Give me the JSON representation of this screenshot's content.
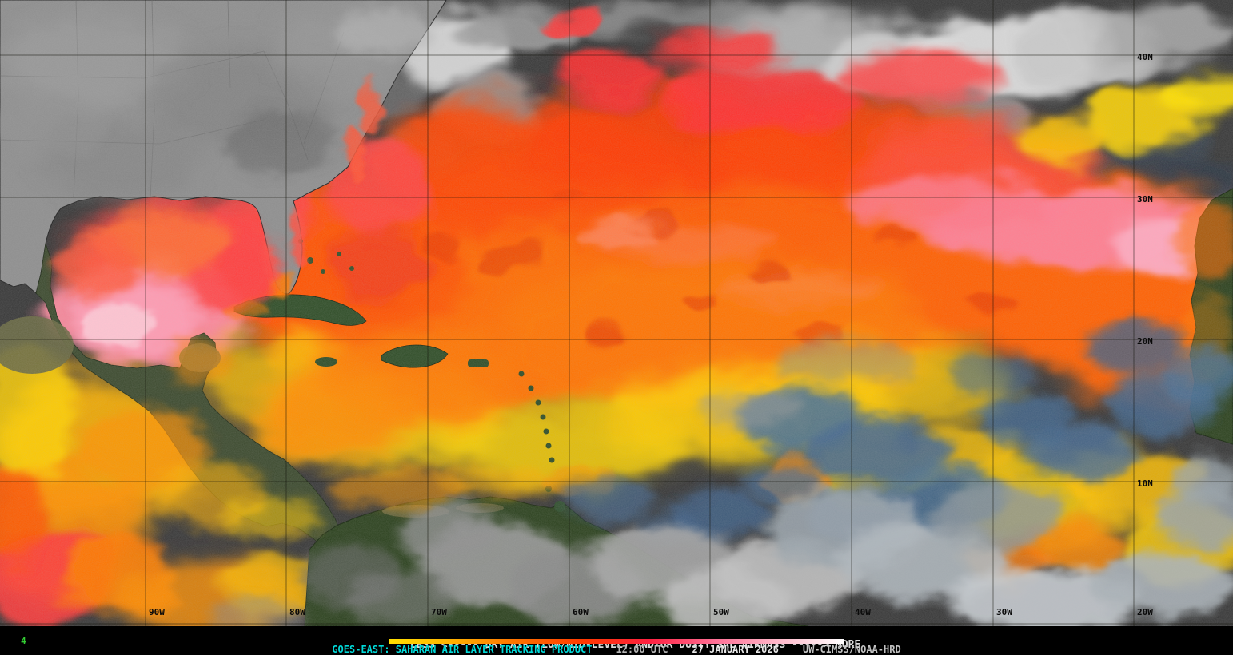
{
  "map": {
    "frame_number": "4",
    "lat_labels": [
      "40N",
      "30N",
      "20N",
      "10N"
    ],
    "lon_labels": [
      "90W",
      "80W",
      "70W",
      "60W",
      "50W",
      "40W",
      "30W",
      "20W"
    ]
  },
  "legend": {
    "text": "LESS <----- DRY AIR (LOW/MID-LEVEL) AND/OR DUSTY SAL AIRMASS -----> MORE",
    "gradient_colors": [
      "#ffe000",
      "#ffb000",
      "#ff7000",
      "#ff3800",
      "#ff2040",
      "#ff6f95",
      "#ffb9cb",
      "#ffffff"
    ]
  },
  "caption": {
    "product": "GOES-EAST: SAHARAN AIR LAYER TRACKING PRODUCT",
    "time": "12:00 UTC",
    "date": "27 JANUARY 2026",
    "credit": "UW-CIMSS/NOAA-HRD"
  },
  "colors": {
    "accent_cyan": "#00d9d9",
    "frame_green": "#33cc33",
    "sal_orange": "#ff6000",
    "sal_pink": "#ff8098",
    "dry_yellow": "#ffd000",
    "moist_blue": "#4a6f94"
  }
}
